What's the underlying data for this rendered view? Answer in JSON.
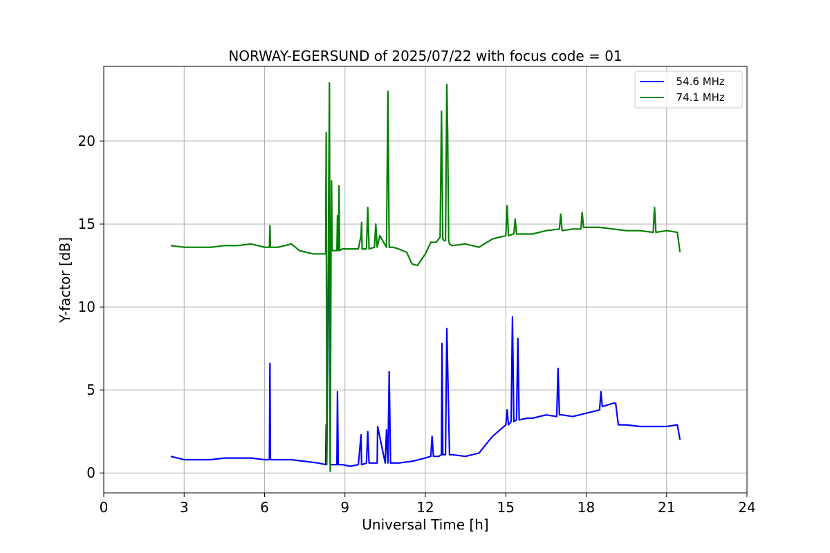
{
  "chart_data": {
    "type": "line",
    "title": "NORWAY-EGERSUND of 2025/07/22 with focus code = 01",
    "xlabel": "Universal Time [h]",
    "ylabel": "Y-factor [dB]",
    "xlim": [
      0,
      24
    ],
    "ylim": [
      -1.2,
      24.5
    ],
    "xticks": [
      "0",
      "3",
      "6",
      "9",
      "12",
      "15",
      "18",
      "21",
      "24"
    ],
    "yticks": [
      "0",
      "5",
      "10",
      "15",
      "20"
    ],
    "grid": true,
    "legend_position": "top-right",
    "series": [
      {
        "name": "  54.6 MHz",
        "color": "#0000ff",
        "x": [
          2.5,
          3.0,
          3.5,
          4.0,
          4.5,
          5.0,
          5.5,
          6.0,
          6.18,
          6.2,
          6.22,
          6.5,
          7.0,
          7.5,
          8.0,
          8.28,
          8.3,
          8.32,
          8.42,
          8.45,
          8.48,
          8.6,
          8.7,
          8.72,
          8.75,
          8.9,
          9.2,
          9.5,
          9.6,
          9.62,
          9.64,
          9.8,
          9.85,
          9.9,
          10.1,
          10.2,
          10.22,
          10.5,
          10.55,
          10.6,
          10.65,
          10.7,
          11.0,
          11.5,
          12.0,
          12.2,
          12.25,
          12.3,
          12.5,
          12.6,
          12.62,
          12.65,
          12.75,
          12.8,
          12.85,
          12.9,
          13.0,
          13.5,
          14.0,
          14.5,
          15.0,
          15.05,
          15.1,
          15.2,
          15.25,
          15.3,
          15.4,
          15.45,
          15.5,
          15.8,
          16.0,
          16.5,
          16.9,
          16.95,
          17.0,
          17.1,
          17.5,
          18.0,
          18.5,
          18.55,
          18.6,
          19.0,
          19.1,
          19.2,
          19.5,
          20.0,
          20.5,
          21.0,
          21.4,
          21.5
        ],
        "values": [
          1.0,
          0.8,
          0.8,
          0.8,
          0.9,
          0.9,
          0.9,
          0.8,
          0.8,
          6.6,
          0.8,
          0.8,
          0.8,
          0.7,
          0.6,
          0.5,
          2.9,
          0.5,
          17.7,
          0.5,
          0.5,
          0.5,
          0.5,
          4.9,
          0.5,
          0.5,
          0.4,
          0.5,
          2.3,
          0.5,
          0.5,
          0.6,
          2.5,
          0.6,
          0.6,
          0.6,
          2.8,
          0.6,
          2.6,
          0.6,
          6.1,
          0.6,
          0.6,
          0.7,
          0.9,
          1.0,
          2.2,
          1.0,
          1.0,
          1.1,
          7.8,
          1.1,
          1.1,
          8.7,
          5.1,
          1.1,
          1.1,
          1.0,
          1.2,
          2.2,
          2.9,
          3.8,
          2.9,
          3.1,
          9.4,
          3.1,
          3.2,
          8.1,
          3.2,
          3.3,
          3.3,
          3.5,
          3.4,
          6.3,
          3.5,
          3.5,
          3.4,
          3.6,
          3.8,
          4.9,
          4.0,
          4.2,
          4.2,
          2.9,
          2.9,
          2.8,
          2.8,
          2.8,
          2.9,
          2.0
        ]
      },
      {
        "name": "  74.1 MHz",
        "color": "#008000",
        "x": [
          2.5,
          3.0,
          3.5,
          4.0,
          4.5,
          5.0,
          5.5,
          6.0,
          6.18,
          6.2,
          6.22,
          6.5,
          7.0,
          7.3,
          7.8,
          8.2,
          8.28,
          8.3,
          8.32,
          8.38,
          8.42,
          8.45,
          8.48,
          8.5,
          8.52,
          8.6,
          8.7,
          8.72,
          8.75,
          8.78,
          8.8,
          8.9,
          9.2,
          9.5,
          9.6,
          9.62,
          9.64,
          9.8,
          9.85,
          9.9,
          10.1,
          10.15,
          10.2,
          10.3,
          10.55,
          10.6,
          10.65,
          10.8,
          11.0,
          11.3,
          11.5,
          11.7,
          12.0,
          12.2,
          12.4,
          12.55,
          12.6,
          12.65,
          12.7,
          12.75,
          12.8,
          12.83,
          12.87,
          12.9,
          13.0,
          13.5,
          14.0,
          14.5,
          15.0,
          15.05,
          15.1,
          15.3,
          15.35,
          15.4,
          16.0,
          16.5,
          17.0,
          17.05,
          17.1,
          17.5,
          17.8,
          17.85,
          17.9,
          18.5,
          19.0,
          19.5,
          20.0,
          20.5,
          20.55,
          20.6,
          21.0,
          21.4,
          21.5
        ],
        "values": [
          13.7,
          13.6,
          13.6,
          13.6,
          13.7,
          13.7,
          13.8,
          13.6,
          13.6,
          14.9,
          13.6,
          13.6,
          13.8,
          13.4,
          13.2,
          13.2,
          13.2,
          20.5,
          0.5,
          13.3,
          23.5,
          0.1,
          13.3,
          17.6,
          13.4,
          13.4,
          13.4,
          15.5,
          13.4,
          17.3,
          13.4,
          13.5,
          13.5,
          13.5,
          14.3,
          15.1,
          13.5,
          13.5,
          16.0,
          13.5,
          13.6,
          15.0,
          13.6,
          14.3,
          13.6,
          23.0,
          13.6,
          13.6,
          13.5,
          13.3,
          12.6,
          12.5,
          13.2,
          13.9,
          13.9,
          14.2,
          21.8,
          14.1,
          14.0,
          14.0,
          23.4,
          20.5,
          14.0,
          13.8,
          13.7,
          13.8,
          13.6,
          14.1,
          14.3,
          16.1,
          14.3,
          14.4,
          15.3,
          14.4,
          14.4,
          14.6,
          14.7,
          15.6,
          14.6,
          14.7,
          14.7,
          15.7,
          14.8,
          14.8,
          14.7,
          14.6,
          14.6,
          14.5,
          16.0,
          14.5,
          14.6,
          14.5,
          13.3
        ]
      }
    ]
  }
}
